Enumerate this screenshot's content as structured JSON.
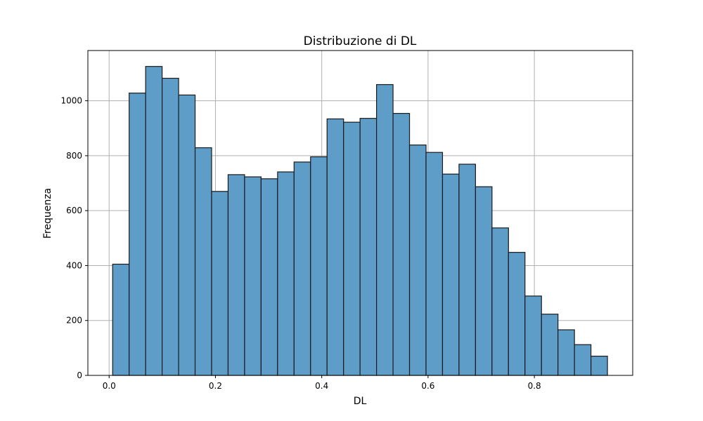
{
  "chart_data": {
    "type": "bar",
    "title": "Distribuzione di DL",
    "xlabel": "DL",
    "ylabel": "Frequenza",
    "xlim": [
      -0.04,
      0.985
    ],
    "ylim": [
      0,
      1183
    ],
    "grid": true,
    "bar_color": "#5f9dc9",
    "edge_color": "#1a1a1a",
    "grid_color": "#b0b0b0",
    "x_ticks": [
      0.0,
      0.2,
      0.4,
      0.6,
      0.8
    ],
    "x_tick_labels": [
      "0.0",
      "0.2",
      "0.4",
      "0.6",
      "0.8"
    ],
    "y_ticks": [
      0,
      200,
      400,
      600,
      800,
      1000
    ],
    "y_tick_labels": [
      "0",
      "200",
      "400",
      "600",
      "800",
      "1000"
    ],
    "bins": {
      "start": 0.0066,
      "width": 0.03103,
      "values": [
        405,
        1028,
        1125,
        1082,
        1021,
        829,
        670,
        731,
        723,
        716,
        741,
        777,
        796,
        934,
        922,
        936,
        1059,
        954,
        839,
        812,
        733,
        769,
        687,
        537,
        448,
        289,
        223,
        166,
        112,
        70
      ]
    }
  }
}
